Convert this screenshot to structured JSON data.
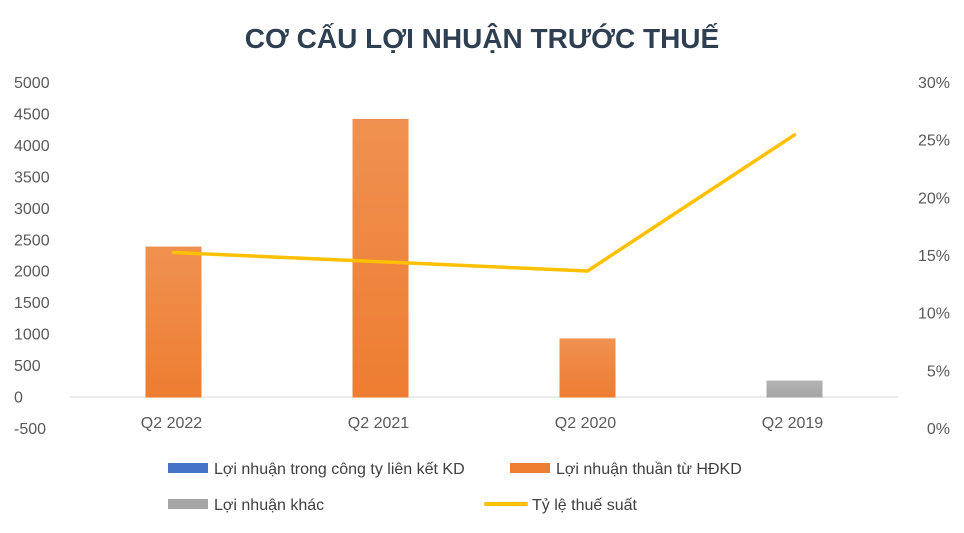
{
  "chart_data": {
    "type": "bar",
    "title": "CƠ CẤU LỢI NHUẬN TRƯỚC THUẾ",
    "categories": [
      "Q2 2022",
      "Q2 2021",
      "Q2 2020",
      "Q2 2019"
    ],
    "series": [
      {
        "name": "Lợi nhuận trong công ty liên kết KD",
        "kind": "bar",
        "axis": "left",
        "color": "#4472c4",
        "values": [
          0,
          0,
          0,
          0
        ]
      },
      {
        "name": "Lợi nhuận thuần từ HĐKD",
        "kind": "bar",
        "axis": "left",
        "color": "#ed7d31",
        "values": [
          2400,
          4430,
          940,
          0
        ]
      },
      {
        "name": "Lợi nhuận khác",
        "kind": "bar",
        "axis": "left",
        "color": "#a5a5a5",
        "values": [
          0,
          0,
          0,
          270
        ]
      },
      {
        "name": "Tỷ lệ thuế suất",
        "kind": "line",
        "axis": "right",
        "color": "#ffc000",
        "values": [
          15.3,
          14.5,
          13.7,
          25.5
        ]
      }
    ],
    "y_left": {
      "ylim": [
        -500,
        5000
      ],
      "ticks": [
        "5000",
        "4500",
        "4000",
        "3500",
        "3000",
        "2500",
        "2000",
        "1500",
        "1000",
        "500",
        "0",
        "-500"
      ]
    },
    "y_right": {
      "ylim": [
        0,
        30
      ],
      "ticks": [
        "30%",
        "25%",
        "20%",
        "15%",
        "10%",
        "5%",
        "0%"
      ]
    },
    "grid": false,
    "legend_position": "bottom"
  }
}
